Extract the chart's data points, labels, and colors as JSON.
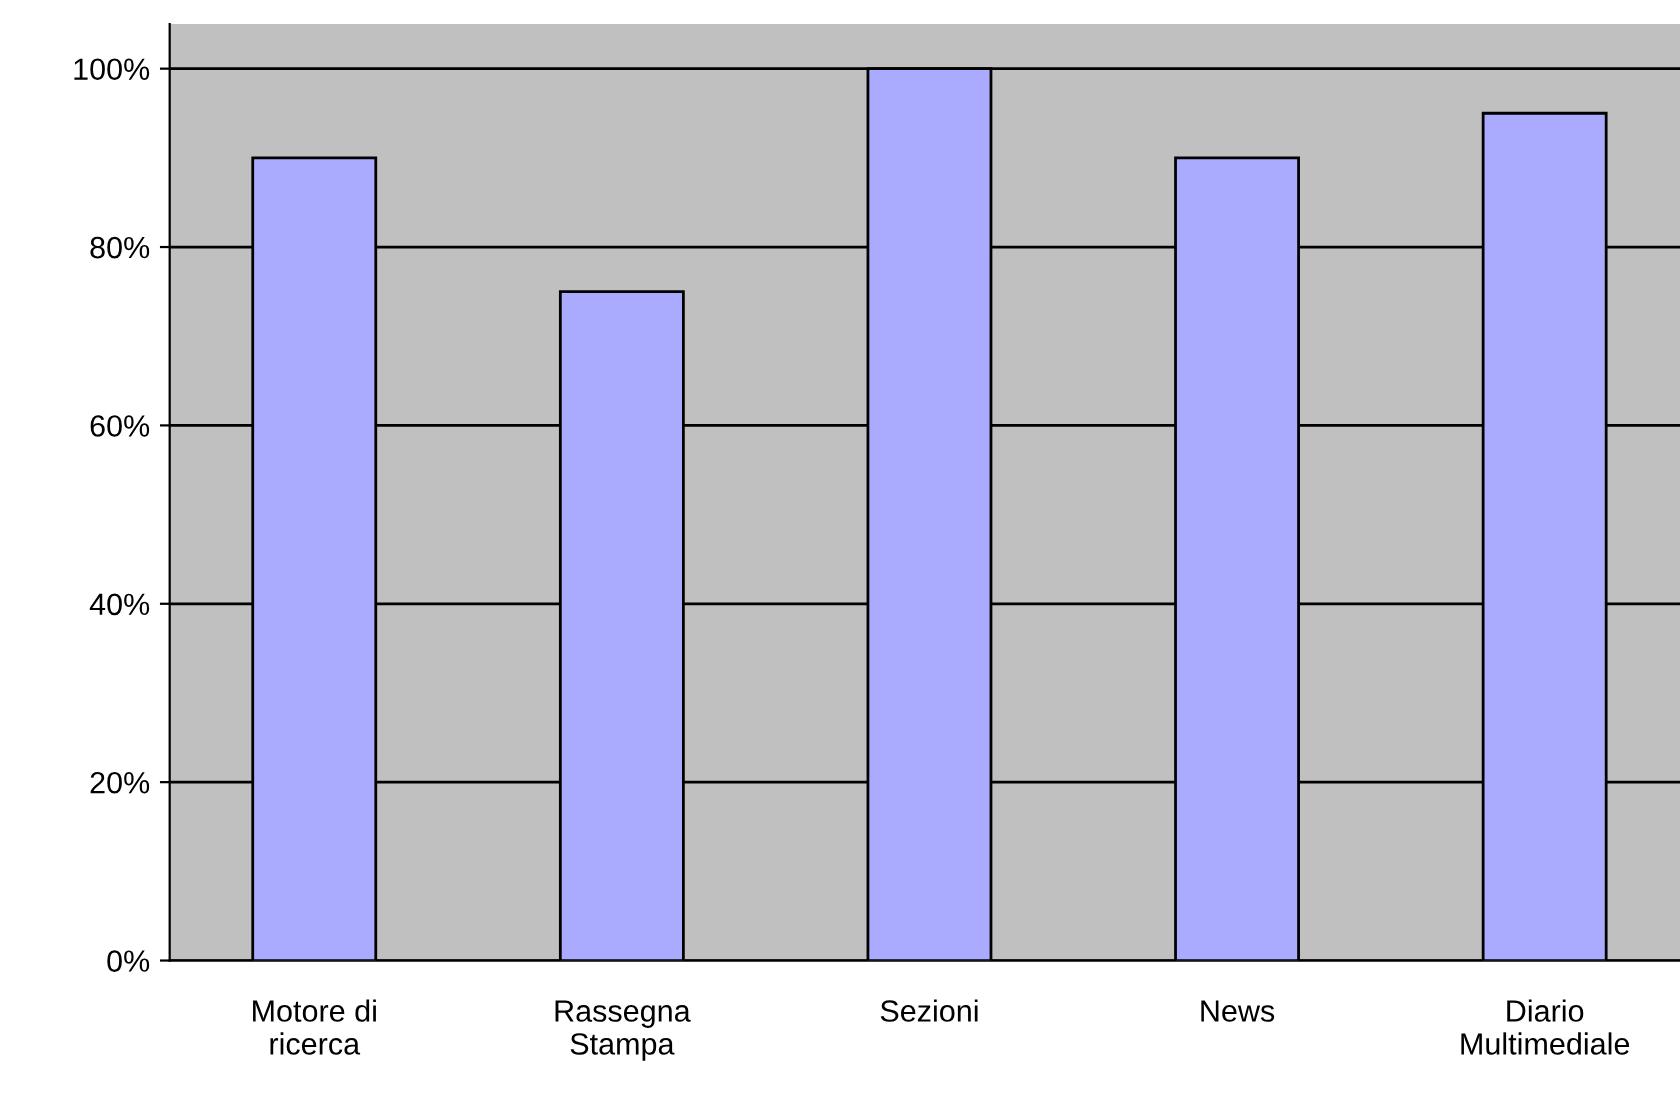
{
  "chart_data": {
    "type": "bar",
    "categories": [
      "Motore di\nricerca",
      "Rassegna\nStampa",
      "Sezioni",
      "News",
      "Diario\nMultimediale"
    ],
    "values": [
      90,
      75,
      100,
      90,
      95
    ],
    "color": "#aaaaff",
    "ylim": [
      0,
      105
    ],
    "yticks": [
      {
        "value": 0,
        "label": "0%"
      },
      {
        "value": 20,
        "label": "20%"
      },
      {
        "value": 40,
        "label": "40%"
      },
      {
        "value": 60,
        "label": "60%"
      },
      {
        "value": 80,
        "label": "80%"
      },
      {
        "value": 100,
        "label": "100%"
      }
    ],
    "grid": "y"
  }
}
